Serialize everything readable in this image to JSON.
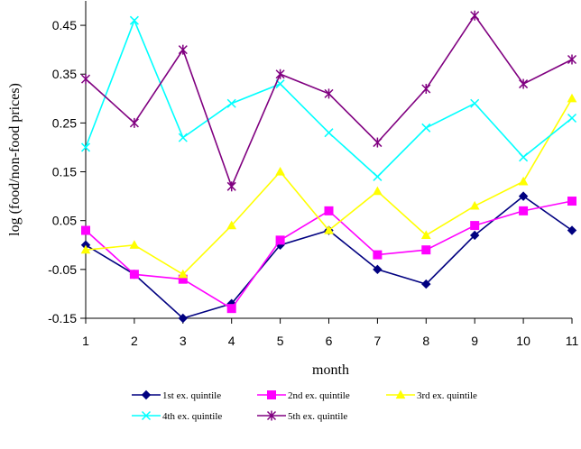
{
  "chart_data": {
    "type": "line",
    "xlabel": "month",
    "ylabel": "log (food/non-food prices)",
    "x": [
      1,
      2,
      3,
      4,
      5,
      6,
      7,
      8,
      9,
      10,
      11
    ],
    "xlim": [
      1,
      11
    ],
    "ylim": [
      -0.15,
      0.5
    ],
    "yticks": [
      -0.15,
      -0.05,
      0.05,
      0.15,
      0.25,
      0.35,
      0.45
    ],
    "ytick_labels": [
      "-0.15",
      "-0.05",
      "0.05",
      "0.15",
      "0.25",
      "0.35",
      "0.45"
    ],
    "legend_position": "bottom",
    "grid": false,
    "series": [
      {
        "name": "1st ex. quintile",
        "color": "#000080",
        "marker": "diamond",
        "values": [
          0.0,
          -0.06,
          -0.15,
          -0.12,
          0.0,
          0.03,
          -0.05,
          -0.08,
          0.02,
          0.1,
          0.03
        ]
      },
      {
        "name": "2nd ex. quintile",
        "color": "#FF00FF",
        "marker": "square",
        "values": [
          0.03,
          -0.06,
          -0.07,
          -0.13,
          0.01,
          0.07,
          -0.02,
          -0.01,
          0.04,
          0.07,
          0.09
        ]
      },
      {
        "name": "3rd ex. quintile",
        "color": "#FFFF00",
        "marker": "triangle",
        "values": [
          -0.01,
          0.0,
          -0.06,
          0.04,
          0.15,
          0.03,
          0.11,
          0.02,
          0.08,
          0.13,
          0.3
        ]
      },
      {
        "name": "4th ex. quintile",
        "color": "#00FFFF",
        "marker": "x",
        "values": [
          0.2,
          0.46,
          0.22,
          0.29,
          0.33,
          0.23,
          0.14,
          0.24,
          0.29,
          0.18,
          0.26
        ]
      },
      {
        "name": "5th ex. quintile",
        "color": "#800080",
        "marker": "star",
        "values": [
          0.34,
          0.25,
          0.4,
          0.12,
          0.35,
          0.31,
          0.21,
          0.32,
          0.47,
          0.33,
          0.38
        ]
      }
    ]
  }
}
